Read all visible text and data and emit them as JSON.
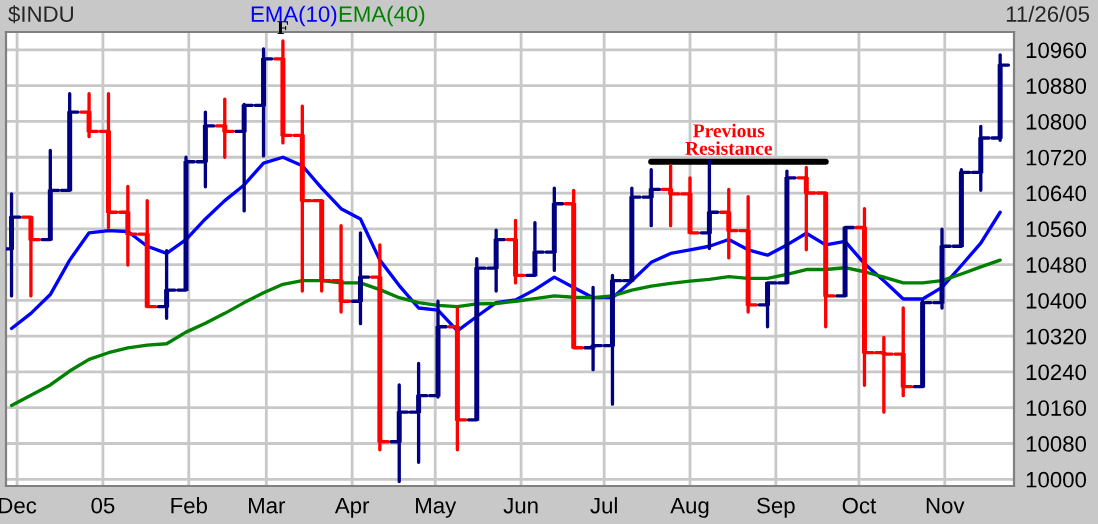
{
  "chart_data": {
    "type": "candlestick",
    "title": "$INDU",
    "x": [
      "2004-11-29",
      "2004-12-06",
      "2004-12-13",
      "2004-12-20",
      "2004-12-27",
      "2005-01-03",
      "2005-01-10",
      "2005-01-17",
      "2005-01-24",
      "2005-01-31",
      "2005-02-07",
      "2005-02-14",
      "2005-02-21",
      "2005-02-28",
      "2005-03-07",
      "2005-03-14",
      "2005-03-21",
      "2005-03-28",
      "2005-04-04",
      "2005-04-11",
      "2005-04-18",
      "2005-04-25",
      "2005-05-02",
      "2005-05-09",
      "2005-05-16",
      "2005-05-23",
      "2005-05-30",
      "2005-06-06",
      "2005-06-13",
      "2005-06-20",
      "2005-06-27",
      "2005-07-04",
      "2005-07-11",
      "2005-07-18",
      "2005-07-25",
      "2005-08-01",
      "2005-08-08",
      "2005-08-15",
      "2005-08-22",
      "2005-08-29",
      "2005-09-05",
      "2005-09-12",
      "2005-09-19",
      "2005-09-26",
      "2005-10-03",
      "2005-10-10",
      "2005-10-17",
      "2005-10-24",
      "2005-10-31",
      "2005-11-07",
      "2005-11-14",
      "2005-11-21"
    ],
    "ohlc": [
      [
        10515,
        10638,
        10410,
        10586
      ],
      [
        10586,
        10586,
        10410,
        10536
      ],
      [
        10536,
        10735,
        10536,
        10646
      ],
      [
        10646,
        10862,
        10646,
        10821
      ],
      [
        10821,
        10862,
        10766,
        10778
      ],
      [
        10778,
        10862,
        10563,
        10597
      ],
      [
        10597,
        10655,
        10479,
        10548
      ],
      [
        10548,
        10623,
        10386,
        10386
      ],
      [
        10386,
        10511,
        10360,
        10423
      ],
      [
        10423,
        10720,
        10423,
        10710
      ],
      [
        10710,
        10821,
        10654,
        10790
      ],
      [
        10790,
        10850,
        10720,
        10778
      ],
      [
        10778,
        10838,
        10600,
        10836
      ],
      [
        10836,
        10962,
        10723,
        10940
      ],
      [
        10940,
        10980,
        10752,
        10769
      ],
      [
        10769,
        10834,
        10421,
        10623
      ],
      [
        10623,
        10623,
        10421,
        10444
      ],
      [
        10444,
        10567,
        10374,
        10398
      ],
      [
        10398,
        10551,
        10348,
        10452
      ],
      [
        10452,
        10524,
        10066,
        10084
      ],
      [
        10084,
        10211,
        9995,
        10150
      ],
      [
        10150,
        10259,
        10038,
        10187
      ],
      [
        10187,
        10398,
        10184,
        10341
      ],
      [
        10341,
        10383,
        10066,
        10133
      ],
      [
        10133,
        10493,
        10133,
        10472
      ],
      [
        10472,
        10557,
        10421,
        10536
      ],
      [
        10536,
        10579,
        10439,
        10456
      ],
      [
        10456,
        10574,
        10456,
        10508
      ],
      [
        10508,
        10651,
        10467,
        10616
      ],
      [
        10616,
        10646,
        10294,
        10294
      ],
      [
        10294,
        10429,
        10245,
        10299
      ],
      [
        10299,
        10456,
        10168,
        10444
      ],
      [
        10444,
        10651,
        10444,
        10631
      ],
      [
        10631,
        10692,
        10567,
        10648
      ],
      [
        10648,
        10701,
        10567,
        10638
      ],
      [
        10638,
        10674,
        10551,
        10551
      ],
      [
        10551,
        10712,
        10516,
        10597
      ],
      [
        10597,
        10648,
        10495,
        10556
      ],
      [
        10556,
        10632,
        10374,
        10390
      ],
      [
        10390,
        10439,
        10341,
        10439
      ],
      [
        10439,
        10689,
        10439,
        10674
      ],
      [
        10674,
        10697,
        10513,
        10640
      ],
      [
        10640,
        10640,
        10341,
        10410
      ],
      [
        10410,
        10563,
        10410,
        10563
      ],
      [
        10563,
        10605,
        10210,
        10283
      ],
      [
        10283,
        10317,
        10150,
        10280
      ],
      [
        10280,
        10383,
        10187,
        10207
      ],
      [
        10207,
        10398,
        10207,
        10395
      ],
      [
        10395,
        10559,
        10383,
        10521
      ],
      [
        10521,
        10692,
        10521,
        10686
      ],
      [
        10686,
        10789,
        10646,
        10763
      ],
      [
        10763,
        10949,
        10758,
        10926
      ]
    ],
    "colors": [
      "#000080",
      "#ff0000",
      "#000080",
      "#000080",
      "#ff0000",
      "#ff0000",
      "#ff0000",
      "#ff0000",
      "#000080",
      "#000080",
      "#000080",
      "#ff0000",
      "#000080",
      "#000080",
      "#ff0000",
      "#ff0000",
      "#ff0000",
      "#ff0000",
      "#000080",
      "#ff0000",
      "#000080",
      "#000080",
      "#000080",
      "#ff0000",
      "#000080",
      "#000080",
      "#ff0000",
      "#000080",
      "#000080",
      "#ff0000",
      "#000080",
      "#000080",
      "#000080",
      "#000080",
      "#ff0000",
      "#ff0000",
      "#000080",
      "#ff0000",
      "#ff0000",
      "#000080",
      "#000080",
      "#ff0000",
      "#ff0000",
      "#000080",
      "#ff0000",
      "#ff0000",
      "#ff0000",
      "#000080",
      "#000080",
      "#000080",
      "#000080",
      "#000080"
    ],
    "series": [
      {
        "name": "EMA(10)",
        "type": "line",
        "color": "#0000ff",
        "values": [
          10337,
          10371,
          10413,
          10490,
          10551,
          10556,
          10554,
          10521,
          10505,
          10536,
          10582,
          10623,
          10658,
          10707,
          10720,
          10701,
          10651,
          10605,
          10582,
          10490,
          10433,
          10383,
          10378,
          10332,
          10364,
          10395,
          10401,
          10424,
          10452,
          10429,
          10406,
          10406,
          10444,
          10485,
          10505,
          10513,
          10521,
          10536,
          10513,
          10501,
          10524,
          10550,
          10524,
          10532,
          10482,
          10444,
          10403,
          10403,
          10429,
          10478,
          10528,
          10597
        ]
      },
      {
        "name": "EMA(40)",
        "type": "line",
        "color": "#008000",
        "values": [
          10165,
          10188,
          10211,
          10242,
          10268,
          10283,
          10294,
          10300,
          10303,
          10329,
          10349,
          10371,
          10395,
          10417,
          10436,
          10444,
          10444,
          10439,
          10439,
          10424,
          10406,
          10395,
          10389,
          10386,
          10392,
          10393,
          10398,
          10404,
          10410,
          10407,
          10406,
          10410,
          10423,
          10432,
          10438,
          10443,
          10447,
          10453,
          10449,
          10449,
          10458,
          10469,
          10469,
          10473,
          10464,
          10452,
          10439,
          10439,
          10444,
          10459,
          10475,
          10490
        ]
      },
      {
        "type": "line",
        "color": "#000000",
        "x": [
          "2005-07-18",
          "2005-09-19"
        ],
        "values": [
          10710,
          10710
        ]
      }
    ],
    "xlim": [
      "2004-11-27",
      "2005-11-26"
    ],
    "xticks": [
      {
        "value": "2004-12-01",
        "label": "Dec"
      },
      {
        "value": "2005-01-01",
        "label": "05"
      },
      {
        "value": "2005-02-01",
        "label": "Feb"
      },
      {
        "value": "2005-03-01",
        "label": "Mar"
      },
      {
        "value": "2005-04-01",
        "label": "Apr"
      },
      {
        "value": "2005-05-01",
        "label": "May"
      },
      {
        "value": "2005-06-01",
        "label": "Jun"
      },
      {
        "value": "2005-07-01",
        "label": "Jul"
      },
      {
        "value": "2005-08-01",
        "label": "Aug"
      },
      {
        "value": "2005-09-01",
        "label": "Sep"
      },
      {
        "value": "2005-10-01",
        "label": "Oct"
      },
      {
        "value": "2005-11-01",
        "label": "Nov"
      }
    ],
    "ylim": [
      9985,
      11000
    ],
    "yticks": [
      10000,
      10080,
      10160,
      10240,
      10320,
      10400,
      10480,
      10560,
      10640,
      10720,
      10800,
      10880,
      10960
    ],
    "grid": true,
    "legend": "top",
    "annotations": [
      {
        "text": "F",
        "x": "2005-03-07",
        "y": 10980
      },
      {
        "text": "Previous\nResistance",
        "x": "2005-08-15",
        "y": 10710
      },
      "11/26/05"
    ]
  }
}
